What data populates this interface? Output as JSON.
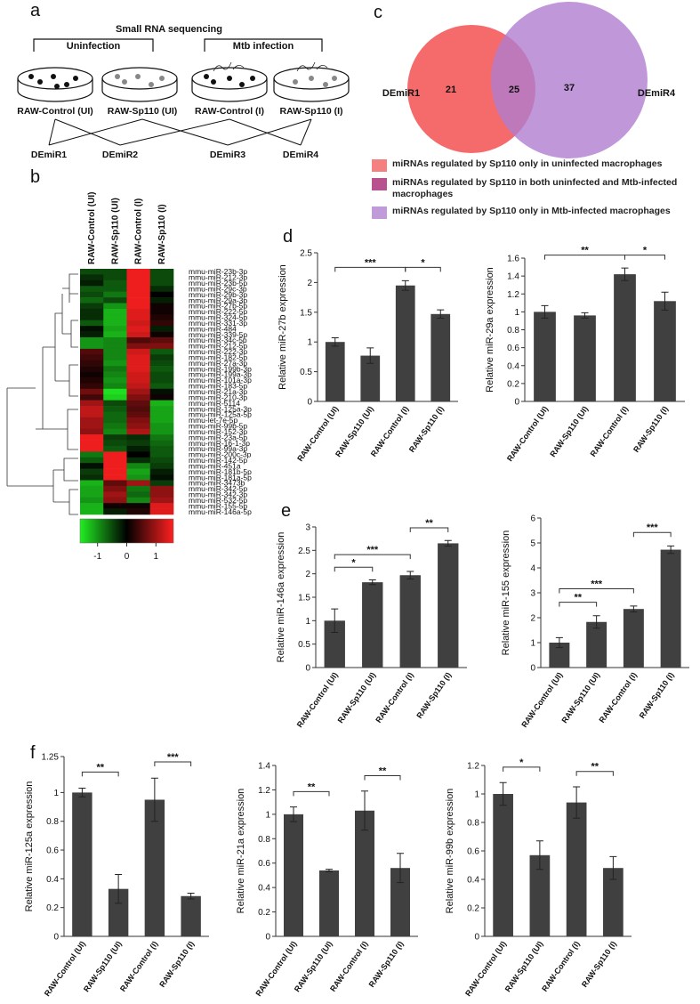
{
  "panels": {
    "a": "a",
    "b": "b",
    "c": "c",
    "d": "d",
    "e": "e",
    "f": "f"
  },
  "diagram": {
    "title": "Small RNA sequencing",
    "groups": [
      "Uninfection",
      "Mtb infection"
    ],
    "samples": [
      "RAW-Control (UI)",
      "RAW-Sp110 (UI)",
      "RAW-Control (I)",
      "RAW-Sp110 (I)"
    ],
    "comparisons": [
      "DEmiR1",
      "DEmiR2",
      "DEmiR3",
      "DEmiR4"
    ]
  },
  "chart_data": [
    {
      "type": "heatmap",
      "columns": [
        "RAW-Control (UI)",
        "RAW-Sp110 (UI)",
        "RAW-Control (I)",
        "RAW-Sp110 (I)"
      ],
      "rows": [
        "mmu-miR-23b-3p",
        "mmu-miR-212-3p",
        "mmu-miR-23b-5p",
        "mmu-miR-29c-3p",
        "mmu-miR-29b-3p",
        "mmu-miR-29a-3p",
        "mmu-miR-27b-5p",
        "mmu-miR-222-5p",
        "mmu-miR-324-5p",
        "mmu-miR-331-3p",
        "mmu-miR-484",
        "mmu-miR-339-5p",
        "mmu-miR-34c-5p",
        "mmu-miR-212-5p",
        "mmu-miR-222-3p",
        "mmu-miR-182-5p",
        "mmu-miR-27a-3p",
        "mmu-miR-199b-3p",
        "mmu-miR-199a-3p",
        "mmu-miR-101a-3p",
        "mmu-miR-183-5p",
        "mmu-miR-21a-3p",
        "mmu-miR-210-3p",
        "mmu-miR-5114",
        "mmu-miR-125a-3p",
        "mmu-miR-125a-5p",
        "mmu-let-7e-5p",
        "mmu-miR-99b-5p",
        "mmu-miR-152-3p",
        "mmu-miR-23a-5p",
        "mmu-miR-16-1-3p",
        "mmu-miR-99a-3p",
        "mmu-miR-200c-3p",
        "mmu-miR-142-5p",
        "mmu-miR-451a",
        "mmu-miR-181b-5p",
        "mmu-miR-181a-5p",
        "mmu-miR-3473b",
        "mmu-miR-342-5p",
        "mmu-miR-342-3p",
        "mmu-miR-532-5p",
        "mmu-miR-155-5p",
        "mmu-miR-146a-5p"
      ],
      "values": [
        [
          -0.5,
          -0.5,
          1.5,
          -0.5
        ],
        [
          -0.3,
          -0.5,
          1.5,
          -0.5
        ],
        [
          -0.2,
          -0.6,
          1.5,
          -0.5
        ],
        [
          -0.6,
          -0.6,
          1.5,
          -0.3
        ],
        [
          -0.5,
          -0.8,
          1.5,
          0
        ],
        [
          -0.7,
          -0.5,
          1.5,
          -0.2
        ],
        [
          -0.4,
          -1.0,
          1.5,
          0.1
        ],
        [
          -0.3,
          -1.2,
          1.4,
          0.1
        ],
        [
          -0.3,
          -1.2,
          1.4,
          0.2
        ],
        [
          -0.6,
          -1.2,
          1.3,
          0.3
        ],
        [
          -0.1,
          -1.1,
          1.4,
          -0.2
        ],
        [
          -0.2,
          -1.2,
          1.3,
          0.1
        ],
        [
          -1.0,
          -0.9,
          0.5,
          0.6
        ],
        [
          -1.0,
          -0.9,
          0.8,
          0.8
        ],
        [
          0.5,
          -0.9,
          1.3,
          -0.6
        ],
        [
          0.4,
          -0.9,
          1.4,
          -0.4
        ],
        [
          0.3,
          -1.0,
          1.4,
          -0.5
        ],
        [
          0.2,
          -0.8,
          1.4,
          -0.6
        ],
        [
          0.1,
          -0.9,
          1.3,
          -0.5
        ],
        [
          0.2,
          -1.0,
          1.3,
          -0.5
        ],
        [
          0.3,
          -0.9,
          1.2,
          -0.6
        ],
        [
          0.7,
          -1.5,
          1.0,
          -0.1
        ],
        [
          0.4,
          -1.4,
          0.8,
          0.1
        ],
        [
          1.0,
          -0.5,
          0.6,
          -1.2
        ],
        [
          1.2,
          -0.6,
          0.5,
          -1.1
        ],
        [
          1.2,
          -0.7,
          0.6,
          -1.1
        ],
        [
          1.0,
          -0.7,
          0.8,
          -1.1
        ],
        [
          1.0,
          -0.8,
          0.9,
          -1.0
        ],
        [
          0.9,
          -0.9,
          1.1,
          -1.0
        ],
        [
          1.5,
          -0.4,
          -0.3,
          -0.8
        ],
        [
          1.5,
          -0.5,
          -0.4,
          -0.7
        ],
        [
          1.5,
          -0.6,
          -0.2,
          -0.6
        ],
        [
          -0.8,
          1.5,
          0,
          -0.6
        ],
        [
          -0.6,
          1.5,
          -0.3,
          -0.5
        ],
        [
          -0.1,
          1.5,
          -0.9,
          -0.4
        ],
        [
          -0.4,
          1.5,
          -1.1,
          -0.2
        ],
        [
          -0.3,
          1.5,
          -1.0,
          -0.1
        ],
        [
          -1.2,
          0.6,
          1.0,
          -0.4
        ],
        [
          -1.1,
          0.8,
          -0.8,
          0.9
        ],
        [
          -1.1,
          1.0,
          -0.7,
          0.9
        ],
        [
          -1.0,
          0.9,
          -0.9,
          1.0
        ],
        [
          -1.2,
          0.1,
          0.1,
          1.4
        ],
        [
          -1.2,
          -0.2,
          0.2,
          1.4
        ]
      ],
      "clim": [
        -1.6,
        1.6
      ],
      "colorbar_ticks": [
        -1,
        0,
        1
      ],
      "colors": [
        "#22ee22",
        "#000000",
        "#ff2020"
      ]
    },
    {
      "type": "venn",
      "sets": [
        {
          "name": "DEmiR1",
          "color": "#f56b6b"
        },
        {
          "name": "DEmiR4",
          "color": "#b07dd0"
        }
      ],
      "values": [
        21,
        25,
        37
      ],
      "legend": [
        {
          "label": "miRNAs regulated by Sp110 only in uninfected macrophages",
          "color": "#f48080"
        },
        {
          "label": "miRNAs regulated by Sp110 in both uninfected and Mtb-infected macrophages",
          "color": "#b8528f"
        },
        {
          "label": "miRNAs regulated by Sp110 only in Mtb-infected macrophages",
          "color": "#c19ad9"
        }
      ]
    },
    {
      "type": "bar",
      "ylabel": "Relative miR-27b expression",
      "color": "#404040",
      "categories": [
        "RAW-Control (UI)",
        "RAW-Sp110 (UI)",
        "RAW-Control (I)",
        "RAW-Sp110 (I)"
      ],
      "values": [
        1.0,
        0.77,
        1.95,
        1.47
      ],
      "errors": [
        0.07,
        0.13,
        0.08,
        0.07
      ],
      "ylim": [
        0,
        2.5
      ],
      "yticks": [
        0,
        0.5,
        1,
        1.5,
        2,
        2.5
      ],
      "significance": [
        {
          "from": 0,
          "to": 2,
          "label": "***"
        },
        {
          "from": 2,
          "to": 3,
          "label": "*"
        }
      ]
    },
    {
      "type": "bar",
      "ylabel": "Relative miR-29a expression",
      "color": "#404040",
      "categories": [
        "RAW-Control (UI)",
        "RAW-Sp110 (UI)",
        "RAW-Control (I)",
        "RAW-Sp110 (I)"
      ],
      "values": [
        1.0,
        0.96,
        1.42,
        1.12
      ],
      "errors": [
        0.07,
        0.03,
        0.07,
        0.1
      ],
      "ylim": [
        0,
        1.6
      ],
      "yticks": [
        0,
        0.2,
        0.4,
        0.6,
        0.8,
        1,
        1.2,
        1.4,
        1.6
      ],
      "significance": [
        {
          "from": 0,
          "to": 2,
          "label": "**"
        },
        {
          "from": 2,
          "to": 3,
          "label": "*"
        }
      ]
    },
    {
      "type": "bar",
      "ylabel": "Relative miR-146a expression",
      "color": "#404040",
      "categories": [
        "RAW-Control (UI)",
        "RAW-Sp110 (UI)",
        "RAW-Control (I)",
        "RAW-Sp110 (I)"
      ],
      "values": [
        1.0,
        1.82,
        1.97,
        2.65
      ],
      "errors": [
        0.25,
        0.05,
        0.08,
        0.06
      ],
      "ylim": [
        0,
        3
      ],
      "yticks": [
        0,
        0.5,
        1,
        1.5,
        2,
        2.5,
        3
      ],
      "significance": [
        {
          "from": 0,
          "to": 1,
          "label": "*"
        },
        {
          "from": 0,
          "to": 2,
          "label": "***"
        },
        {
          "from": 2,
          "to": 3,
          "label": "**"
        }
      ]
    },
    {
      "type": "bar",
      "ylabel": "Relative miR-155 expression",
      "color": "#404040",
      "categories": [
        "RAW-Control (UI)",
        "RAW-Sp110 (UI)",
        "RAW-Control (I)",
        "RAW-Sp110 (I)"
      ],
      "values": [
        1.0,
        1.83,
        2.35,
        4.73
      ],
      "errors": [
        0.2,
        0.25,
        0.12,
        0.15
      ],
      "ylim": [
        0,
        6
      ],
      "yticks": [
        0,
        1,
        2,
        3,
        4,
        5,
        6
      ],
      "significance": [
        {
          "from": 0,
          "to": 1,
          "label": "**"
        },
        {
          "from": 0,
          "to": 2,
          "label": "***"
        },
        {
          "from": 2,
          "to": 3,
          "label": "***"
        }
      ]
    },
    {
      "type": "bar",
      "ylabel": "Relative miR-125a expression",
      "color": "#404040",
      "categories": [
        "RAW-Control (UI)",
        "RAW-Sp110 (UI)",
        "RAW-Control (I)",
        "RAW-Sp110 (I)"
      ],
      "values": [
        1.0,
        0.33,
        0.95,
        0.28
      ],
      "errors": [
        0.03,
        0.1,
        0.15,
        0.02
      ],
      "ylim": [
        0,
        1.25
      ],
      "yticks": [
        0,
        0.2,
        0.4,
        0.6,
        0.8,
        1,
        1.25
      ],
      "significance": [
        {
          "from": 0,
          "to": 1,
          "label": "**"
        },
        {
          "from": 2,
          "to": 3,
          "label": "***"
        }
      ]
    },
    {
      "type": "bar",
      "ylabel": "Relative miR-21a expression",
      "color": "#404040",
      "categories": [
        "RAW-Control (UI)",
        "RAW-Sp110 (UI)",
        "RAW-Control (I)",
        "RAW-Sp110 (I)"
      ],
      "values": [
        1.0,
        0.54,
        1.03,
        0.56
      ],
      "errors": [
        0.06,
        0.01,
        0.16,
        0.12
      ],
      "ylim": [
        0,
        1.4
      ],
      "yticks": [
        0,
        0.2,
        0.4,
        0.6,
        0.8,
        1,
        1.2,
        1.4
      ],
      "significance": [
        {
          "from": 0,
          "to": 1,
          "label": "**"
        },
        {
          "from": 2,
          "to": 3,
          "label": "**"
        }
      ]
    },
    {
      "type": "bar",
      "ylabel": "Relative miR-99b expression",
      "color": "#404040",
      "categories": [
        "RAW-Control (UI)",
        "RAW-Sp110 (UI)",
        "RAW-Control (I)",
        "RAW-Sp110 (I)"
      ],
      "values": [
        1.0,
        0.57,
        0.94,
        0.48
      ],
      "errors": [
        0.08,
        0.1,
        0.11,
        0.08
      ],
      "ylim": [
        0,
        1.2
      ],
      "yticks": [
        0,
        0.2,
        0.4,
        0.6,
        0.8,
        1,
        1.2
      ],
      "significance": [
        {
          "from": 0,
          "to": 1,
          "label": "*"
        },
        {
          "from": 2,
          "to": 3,
          "label": "**"
        }
      ]
    }
  ]
}
